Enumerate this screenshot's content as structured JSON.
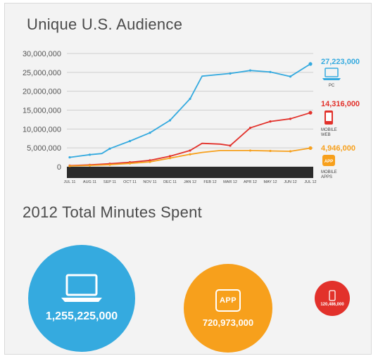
{
  "titles": {
    "audience": "Unique U.S. Audience",
    "minutes": "2012 Total Minutes Spent"
  },
  "chart_data": {
    "type": "line",
    "title": "Unique U.S. Audience",
    "categories": [
      "JUL 11",
      "AUG 11",
      "SEP 11",
      "OCT 11",
      "NOV 11",
      "DEC 11",
      "JAN 12",
      "FEB 12",
      "MAR 12",
      "APR 12",
      "MAY 12",
      "JUN 12",
      "JUL 12"
    ],
    "ylim": [
      0,
      30000000
    ],
    "yticks": [
      0,
      5000000,
      10000000,
      15000000,
      20000000,
      25000000,
      30000000
    ],
    "ytick_labels": [
      "0",
      "5,000,000",
      "10,000,000",
      "15,000,000",
      "20,000,000",
      "25,000,000",
      "30,000,000"
    ],
    "grid": true,
    "series": [
      {
        "name": "PC",
        "color": "#35aadf",
        "points": [
          [
            0,
            2500000
          ],
          [
            1,
            3200000
          ],
          [
            1.6,
            3500000
          ],
          [
            2,
            4800000
          ],
          [
            3,
            6800000
          ],
          [
            4,
            9000000
          ],
          [
            5,
            12300000
          ],
          [
            6,
            18000000
          ],
          [
            6.6,
            24000000
          ],
          [
            8,
            24700000
          ],
          [
            9,
            25500000
          ],
          [
            10,
            25100000
          ],
          [
            11,
            23900000
          ],
          [
            12,
            27223000
          ]
        ],
        "end_label": "27,223,000"
      },
      {
        "name": "MOBILE WEB",
        "color": "#e2312b",
        "points": [
          [
            0,
            300000
          ],
          [
            1,
            500000
          ],
          [
            2,
            800000
          ],
          [
            3,
            1200000
          ],
          [
            4,
            1700000
          ],
          [
            5,
            2800000
          ],
          [
            6,
            4300000
          ],
          [
            6.6,
            6200000
          ],
          [
            7.5,
            6000000
          ],
          [
            8,
            5600000
          ],
          [
            9,
            10300000
          ],
          [
            10,
            12000000
          ],
          [
            11,
            12700000
          ],
          [
            12,
            14316000
          ]
        ],
        "end_label": "14,316,000"
      },
      {
        "name": "MOBILE APPS",
        "color": "#f7a01c",
        "points": [
          [
            0,
            200000
          ],
          [
            1,
            350000
          ],
          [
            2,
            550000
          ],
          [
            3,
            900000
          ],
          [
            4,
            1300000
          ],
          [
            5,
            2300000
          ],
          [
            6,
            3300000
          ],
          [
            6.6,
            3800000
          ],
          [
            7.5,
            4300000
          ],
          [
            9,
            4300000
          ],
          [
            10,
            4200000
          ],
          [
            11,
            4100000
          ],
          [
            12,
            4946000
          ]
        ],
        "end_label": "4,946,000"
      }
    ]
  },
  "legend": {
    "pc": {
      "label": "PC",
      "value": "27,223,000",
      "color": "#35aadf",
      "icon": "laptop-icon"
    },
    "web": {
      "label_1": "MOBILE",
      "label_2": "WEB",
      "value": "14,316,000",
      "color": "#e2312b",
      "icon": "phone-icon"
    },
    "apps": {
      "label_1": "MOBILE",
      "label_2": "APPS",
      "value": "4,946,000",
      "color": "#f7a01c",
      "icon": "app-icon",
      "badge": "APP"
    }
  },
  "minutes": {
    "pc": {
      "value": "1,255,225,000",
      "color": "#35aadf",
      "icon": "laptop-icon"
    },
    "apps": {
      "value": "720,973,000",
      "color": "#f7a01c",
      "badge": "APP",
      "icon": "app-icon"
    },
    "web": {
      "value": "120,486,000",
      "color": "#e2312b",
      "icon": "phone-icon"
    }
  }
}
